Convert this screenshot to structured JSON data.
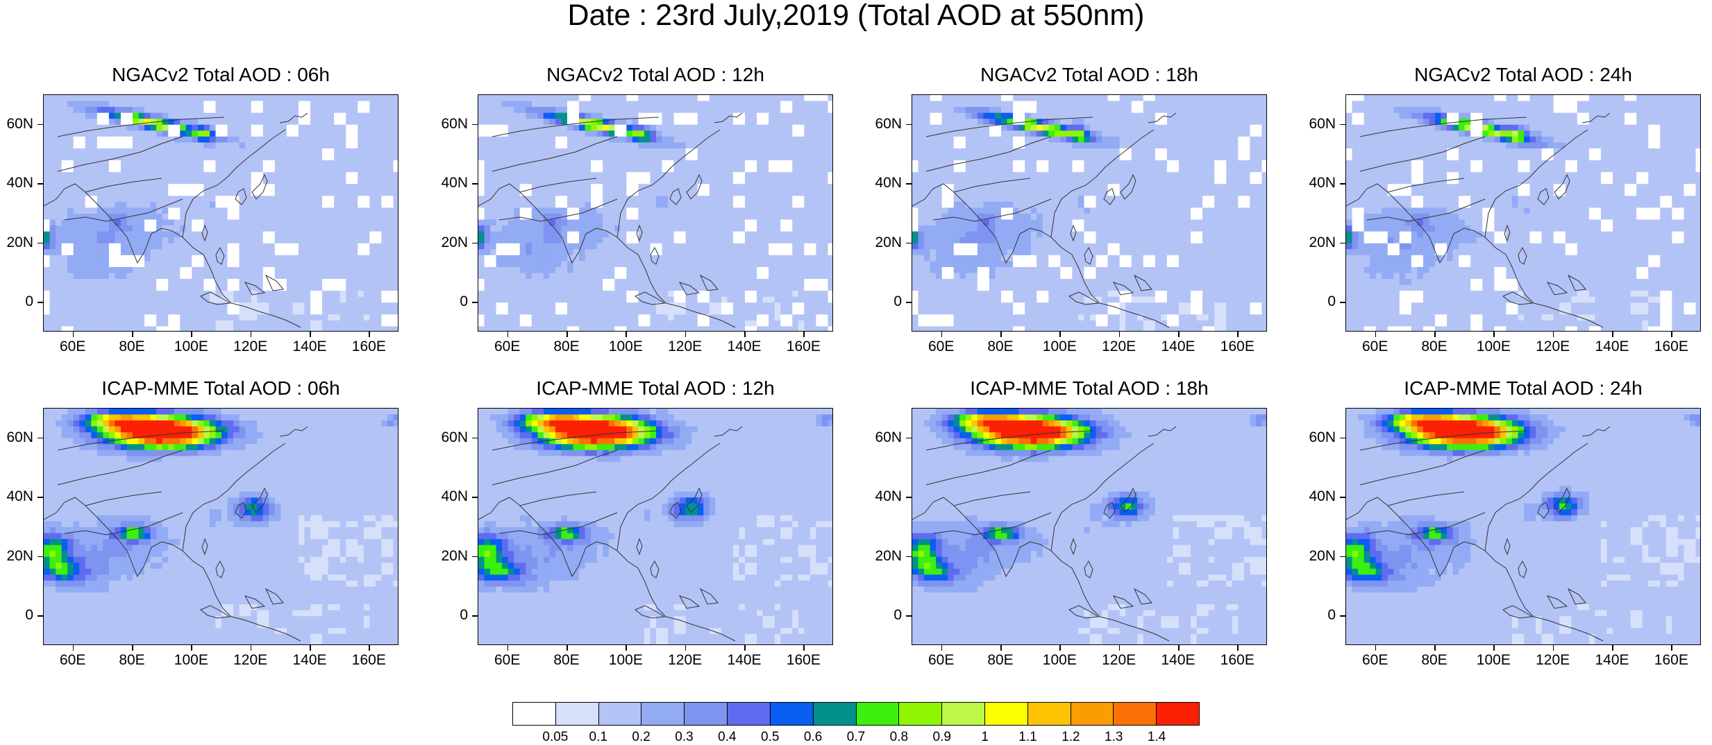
{
  "title": "Date : 23rd July,2019 (Total AOD at 550nm)",
  "panels": [
    {
      "title": "NGACv2 Total AOD : 06h",
      "model": "NGACv2",
      "hour": "06h"
    },
    {
      "title": "NGACv2 Total AOD : 12h",
      "model": "NGACv2",
      "hour": "12h"
    },
    {
      "title": "NGACv2 Total AOD : 18h",
      "model": "NGACv2",
      "hour": "18h"
    },
    {
      "title": "NGACv2 Total AOD : 24h",
      "model": "NGACv2",
      "hour": "24h"
    },
    {
      "title": "ICAP-MME Total AOD : 06h",
      "model": "ICAP-MME",
      "hour": "06h"
    },
    {
      "title": "ICAP-MME Total AOD : 12h",
      "model": "ICAP-MME",
      "hour": "12h"
    },
    {
      "title": "ICAP-MME Total AOD : 18h",
      "model": "ICAP-MME",
      "hour": "18h"
    },
    {
      "title": "ICAP-MME Total AOD : 24h",
      "model": "ICAP-MME",
      "hour": "24h"
    }
  ],
  "y_ticks": [
    "60N",
    "40N",
    "20N",
    "0"
  ],
  "x_ticks": [
    "60E",
    "80E",
    "100E",
    "120E",
    "140E",
    "160E"
  ],
  "map_extent": {
    "lon": [
      50,
      170
    ],
    "lat": [
      -10,
      70
    ]
  },
  "colorbar": {
    "labels": [
      "0.05",
      "0.1",
      "0.2",
      "0.3",
      "0.4",
      "0.5",
      "0.6",
      "0.7",
      "0.8",
      "0.9",
      "1",
      "1.1",
      "1.2",
      "1.3",
      "1.4"
    ],
    "colors": [
      "#ffffff",
      "#d6e0fb",
      "#b3c3f6",
      "#92abf4",
      "#7f93f1",
      "#5f6cf0",
      "#0a5ef2",
      "#03918b",
      "#3bf00f",
      "#8ff503",
      "#bdf748",
      "#fcfc03",
      "#fcc303",
      "#fc9c03",
      "#fc7005",
      "#fc2005"
    ]
  }
}
